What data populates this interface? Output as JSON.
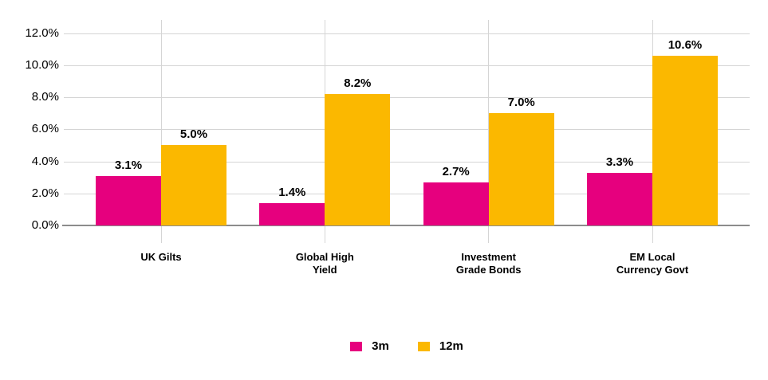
{
  "chart_data": {
    "type": "bar",
    "title": "",
    "categories": [
      "UK Gilts",
      "Global High\nYield",
      "Investment\nGrade Bonds",
      "EM Local\nCurrency Govt"
    ],
    "series": [
      {
        "name": "3m",
        "color": "#E6007E",
        "values": [
          3.1,
          1.4,
          2.7,
          3.3
        ],
        "labels": [
          "3.1%",
          "1.4%",
          "2.7%",
          "3.3%"
        ]
      },
      {
        "name": "12m",
        "color": "#FBB800",
        "values": [
          5.0,
          8.2,
          7.0,
          10.6
        ],
        "labels": [
          "5.0%",
          "8.2%",
          "7.0%",
          "10.6%"
        ]
      }
    ],
    "y_axis": {
      "min": 0,
      "max": 12,
      "step": 2,
      "tick_labels": [
        "0.0%",
        "2.0%",
        "4.0%",
        "6.0%",
        "8.0%",
        "10.0%",
        "12.0%"
      ]
    },
    "grid": true,
    "legend": {
      "position": "bottom",
      "items": [
        {
          "label": "3m",
          "color": "#E6007E"
        },
        {
          "label": "12m",
          "color": "#FBB800"
        }
      ]
    },
    "colors": {
      "gridline": "#D5D5D5",
      "axis_line": "#8C8C8C",
      "text": "#000000",
      "background": "#FFFFFF"
    }
  }
}
